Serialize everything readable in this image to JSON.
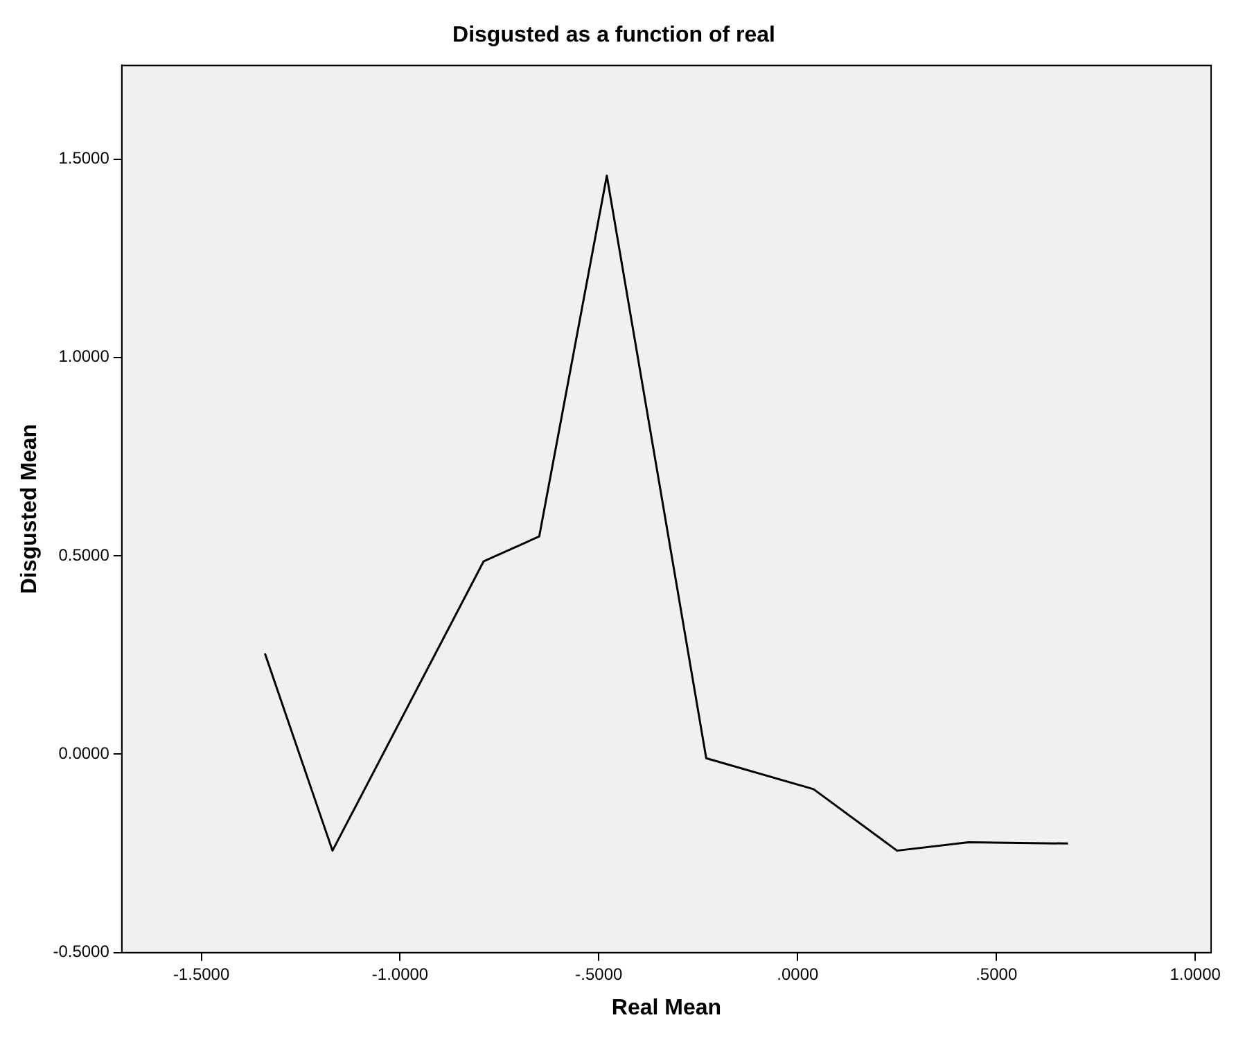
{
  "chart_data": {
    "type": "line",
    "title": "Disgusted as a function of real",
    "xlabel": "Real Mean",
    "ylabel": "Disgusted Mean",
    "x": [
      -1.34,
      -1.17,
      -0.79,
      -0.65,
      -0.48,
      -0.23,
      0.04,
      0.25,
      0.43,
      0.68
    ],
    "series": [
      {
        "color": "#000000",
        "values": [
          0.254,
          -0.243,
          0.486,
          0.549,
          1.458,
          -0.01,
          -0.088,
          -0.243,
          -0.222,
          -0.225
        ]
      }
    ],
    "xlim": [
      -1.7,
      1.04
    ],
    "ylim": [
      -0.5,
      1.736
    ],
    "xticks": [
      {
        "value": -1.5,
        "label": "-1.5000"
      },
      {
        "value": -1,
        "label": "-1.0000"
      },
      {
        "value": -0.5,
        "label": "-.5000"
      },
      {
        "value": 0,
        "label": ".0000"
      },
      {
        "value": 0.5,
        "label": ".5000"
      },
      {
        "value": 1,
        "label": "1.0000"
      }
    ],
    "yticks": [
      {
        "value": -0.5,
        "label": "-0.5000"
      },
      {
        "value": 0,
        "label": "0.0000"
      },
      {
        "value": 0.5,
        "label": "0.5000"
      },
      {
        "value": 1,
        "label": "1.0000"
      },
      {
        "value": 1.5,
        "label": "1.5000"
      }
    ],
    "grid": false,
    "legend": false,
    "marker": "none",
    "line_style": "solid"
  }
}
